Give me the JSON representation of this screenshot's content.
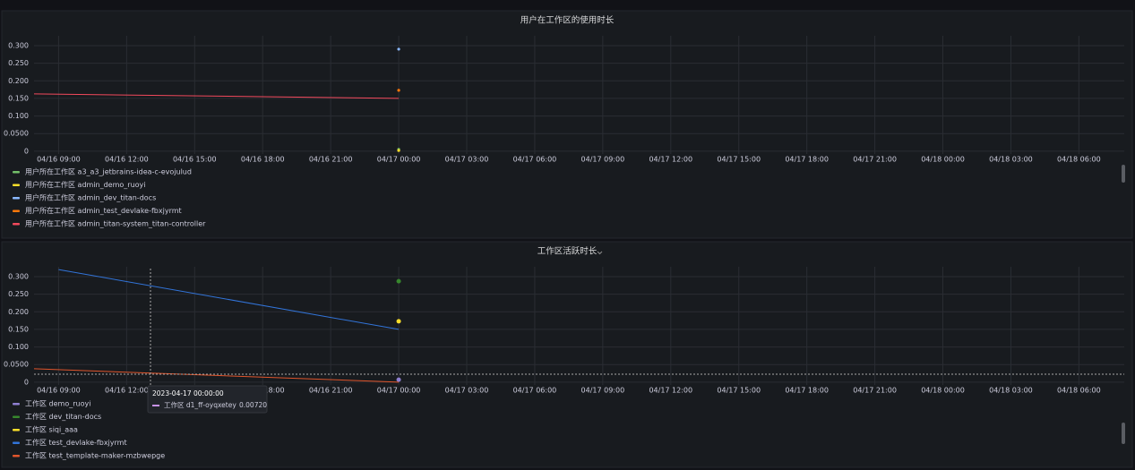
{
  "chart_data": [
    {
      "type": "line",
      "title": "用户在工作区的使用时长",
      "xlim": [
        "04/16 07:55",
        "04/18 08:00"
      ],
      "xticks": [
        "04/16 09:00",
        "04/16 12:00",
        "04/16 15:00",
        "04/16 18:00",
        "04/16 21:00",
        "04/17 00:00",
        "04/17 03:00",
        "04/17 06:00",
        "04/17 09:00",
        "04/17 12:00",
        "04/17 15:00",
        "04/17 18:00",
        "04/17 21:00",
        "04/18 00:00",
        "04/18 03:00",
        "04/18 06:00"
      ],
      "ylim": [
        -0.008,
        0.328
      ],
      "yticks": [
        0,
        {
          "value": 0.05,
          "label": "0.0500"
        },
        {
          "value": 0.1,
          "label": "0.100"
        },
        {
          "value": 0.15,
          "label": "0.150"
        },
        {
          "value": 0.2,
          "label": "0.200"
        },
        {
          "value": 0.25,
          "label": "0.250"
        },
        {
          "value": 0.3,
          "label": "0.300"
        }
      ],
      "grid": true,
      "series": [
        {
          "name": "用户所在工作区 a3_a3_jetbrains-idea-c-evojulud",
          "color": "#73bf69",
          "x": [
            "04/17 00:00"
          ],
          "values": [
            0.005
          ]
        },
        {
          "name": "用户所在工作区 admin_demo_ruoyi",
          "color": "#fade2a",
          "x": [
            "04/17 00:00"
          ],
          "values": [
            0.002
          ]
        },
        {
          "name": "用户所在工作区 admin_dev_titan-docs",
          "color": "#8ab8ff",
          "x": [
            "04/17 00:00"
          ],
          "values": [
            0.29
          ]
        },
        {
          "name": "用户所在工作区 admin_test_devlake-fbxjyrmt",
          "color": "#ff780a",
          "x": [
            "04/17 00:00"
          ],
          "values": [
            0.173
          ]
        },
        {
          "name": "用户所在工作区 admin_titan-system_titan-controller",
          "color": "#f2495c",
          "x": [
            "04/16 07:55",
            "04/17 00:00"
          ],
          "values": [
            0.163,
            0.15
          ]
        }
      ]
    },
    {
      "type": "line",
      "title": "工作区活跃时长",
      "xlim": [
        "04/16 07:55",
        "04/18 08:00"
      ],
      "xticks": [
        "04/16 09:00",
        "04/16 12:00",
        "04/16 15:00",
        "04/16 18:00",
        "04/16 21:00",
        "04/17 00:00",
        "04/17 03:00",
        "04/17 06:00",
        "04/17 09:00",
        "04/17 12:00",
        "04/17 15:00",
        "04/17 18:00",
        "04/17 21:00",
        "04/18 00:00",
        "04/18 03:00",
        "04/18 06:00"
      ],
      "ylim": [
        -0.008,
        0.328
      ],
      "yticks": [
        0,
        {
          "value": 0.05,
          "label": "0.0500"
        },
        {
          "value": 0.1,
          "label": "0.100"
        },
        {
          "value": 0.15,
          "label": "0.150"
        },
        {
          "value": 0.2,
          "label": "0.200"
        },
        {
          "value": 0.25,
          "label": "0.250"
        },
        {
          "value": 0.3,
          "label": "0.300"
        }
      ],
      "grid": true,
      "series": [
        {
          "name": "工作区 demo_ruoyi",
          "color": "#8f7fd1",
          "x": [
            "04/17 00:00"
          ],
          "values": [
            0.007
          ]
        },
        {
          "name": "工作区 dev_titan-docs",
          "color": "#37872d",
          "x": [
            "04/17 00:00"
          ],
          "values": [
            0.287
          ]
        },
        {
          "name": "工作区 siqi_aaa",
          "color": "#fade2a",
          "x": [
            "04/17 00:00"
          ],
          "values": [
            0.173
          ]
        },
        {
          "name": "工作区 test_devlake-fbxjyrmt",
          "color": "#3274d9",
          "x": [
            "04/16 09:00",
            "04/17 00:00"
          ],
          "values": [
            0.32,
            0.15
          ]
        },
        {
          "name": "工作区 test_template-maker-mzbwepge",
          "color": "#e0552c",
          "x": [
            "04/16 07:55",
            "04/17 00:00"
          ],
          "values": [
            0.038,
            0
          ]
        }
      ],
      "tooltip": {
        "time": "2023-04-17 00:00:00",
        "series": "工作区 d1_ff-oyqxetey",
        "value": "0.00720"
      }
    }
  ]
}
